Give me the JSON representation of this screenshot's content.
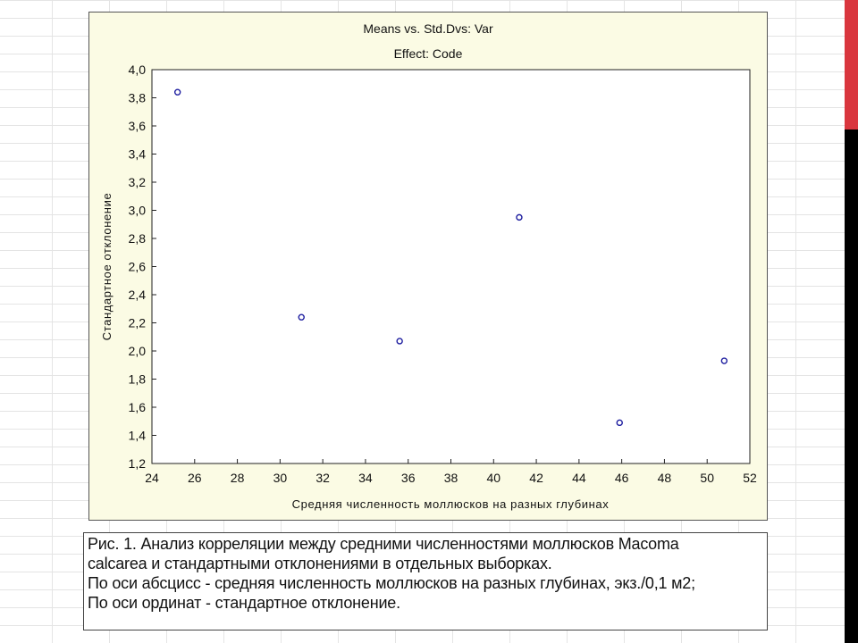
{
  "chart_data": {
    "type": "scatter",
    "title": "Means vs. Std.Dvs: Var",
    "subtitle": "Effect: Code",
    "xlabel": "Средняя численность моллюсков на разных глубинах",
    "ylabel": "Стандартное отклонение",
    "xlim": [
      24,
      52
    ],
    "ylim": [
      1.2,
      4.0
    ],
    "xticks": [
      "24",
      "26",
      "28",
      "30",
      "32",
      "34",
      "36",
      "38",
      "40",
      "42",
      "44",
      "46",
      "48",
      "50",
      "52"
    ],
    "yticks": [
      "1,2",
      "1,4",
      "1,6",
      "1,8",
      "2,0",
      "2,2",
      "2,4",
      "2,6",
      "2,8",
      "3,0",
      "3,2",
      "3,4",
      "3,6",
      "3,8",
      "4,0"
    ],
    "grid": false,
    "marker_color": "#1f1fa0",
    "points": [
      {
        "x": 25.2,
        "y": 3.84
      },
      {
        "x": 31.0,
        "y": 2.24
      },
      {
        "x": 35.6,
        "y": 2.07
      },
      {
        "x": 41.2,
        "y": 2.95
      },
      {
        "x": 45.9,
        "y": 1.49
      },
      {
        "x": 50.8,
        "y": 1.93
      }
    ]
  },
  "caption": {
    "line1": "Рис. 1. Анализ корреляции между средними численностями моллюсков Macoma",
    "line2": "calcarea  и стандартными отклонениями в отдельных выборках.",
    "line3": "По оси абсцисс - средняя численность моллюсков на разных глубинах, экз./0,1  м2;",
    "line4": "По оси ординат - стандартное отклонение."
  },
  "colors": {
    "plot_background": "#fbfbe4",
    "side_bar_black": "#000000",
    "side_bar_red": "#d9363e"
  }
}
